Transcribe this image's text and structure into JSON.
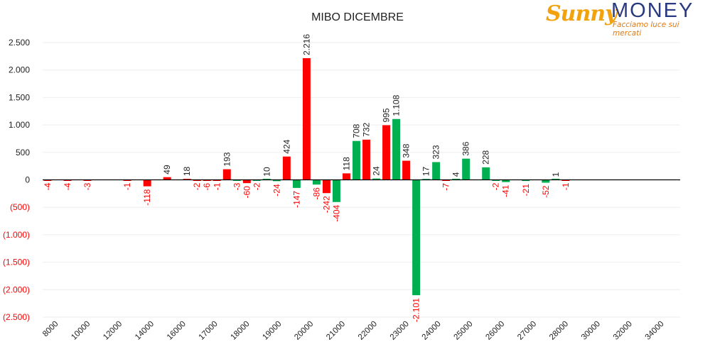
{
  "logo": {
    "brand_sunny": "Sunny",
    "brand_money": "MONEY",
    "tagline": "Facciamo luce sui mercati"
  },
  "colors": {
    "negative_value": "#ff0000",
    "positive_value": "#00b050",
    "text": "#222222",
    "grid": "#eeeeee",
    "zero_axis": "#000000",
    "neg_label": "#ff0000"
  },
  "chart_data": {
    "type": "bar",
    "title": "MIBO DICEMBRE",
    "xlabel": "",
    "ylabel": "",
    "ylim": [
      -2500,
      2500
    ],
    "y_ticks": [
      {
        "v": 2500,
        "label": "2.500"
      },
      {
        "v": 2000,
        "label": "2.000"
      },
      {
        "v": 1500,
        "label": "1.500"
      },
      {
        "v": 1000,
        "label": "1.000"
      },
      {
        "v": 500,
        "label": "500"
      },
      {
        "v": 0,
        "label": "0"
      },
      {
        "v": -500,
        "label": "(500)"
      },
      {
        "v": -1000,
        "label": "(1.000)"
      },
      {
        "v": -1500,
        "label": "(1.500)"
      },
      {
        "v": -2000,
        "label": "(2.000)"
      },
      {
        "v": -2500,
        "label": "(2.500)"
      }
    ],
    "x_tick_labels": [
      "8000",
      "10000",
      "12000",
      "14000",
      "16000",
      "17000",
      "18000",
      "19000",
      "20000",
      "21000",
      "22000",
      "23000",
      "24000",
      "25000",
      "26000",
      "27000",
      "28000",
      "30000",
      "32000",
      "34000"
    ],
    "strike_order": [
      "8000",
      "8500",
      "9000",
      "9500",
      "10000",
      "10500",
      "11000",
      "11500",
      "12000",
      "12500",
      "13000",
      "13500",
      "14000",
      "14500",
      "15000",
      "15500",
      "16000",
      "16250",
      "16500",
      "16750",
      "17000",
      "17250",
      "17500",
      "17750",
      "18000",
      "18250",
      "18500",
      "18750",
      "19000",
      "19250",
      "19500",
      "19750",
      "20000",
      "20250",
      "20500",
      "20750",
      "21000",
      "21250",
      "21500",
      "21750",
      "22000",
      "22250",
      "22500",
      "22750",
      "23000",
      "23250",
      "23500",
      "23750",
      "24000",
      "24500",
      "25000",
      "25500",
      "26000",
      "26500",
      "27000",
      "27500",
      "28000",
      "29000",
      "30000",
      "31000",
      "32000",
      "33000",
      "34000",
      "35000"
    ],
    "series": [
      {
        "color": "red",
        "values": [
          {
            "x": "8000",
            "y": -4,
            "label": "-4"
          },
          {
            "x": "9000",
            "y": -4,
            "label": "-4"
          },
          {
            "x": "10000",
            "y": -3,
            "label": "-3"
          },
          {
            "x": "12000",
            "y": -1,
            "label": "-1"
          },
          {
            "x": "13000",
            "y": -118,
            "label": "-118"
          },
          {
            "x": "14000",
            "y": 49,
            "label": "49"
          },
          {
            "x": "15000",
            "y": 18,
            "label": "18"
          },
          {
            "x": "15500",
            "y": -2,
            "label": "-2"
          },
          {
            "x": "16000",
            "y": -6,
            "label": "-6"
          },
          {
            "x": "16250",
            "y": -1,
            "label": "-1"
          },
          {
            "x": "16500",
            "y": 193,
            "label": "193"
          },
          {
            "x": "17000",
            "y": -60,
            "label": "-60"
          },
          {
            "x": "18000",
            "y": 424,
            "label": "424"
          },
          {
            "x": "18500",
            "y": 2216,
            "label": "2.216"
          },
          {
            "x": "19000",
            "y": -242,
            "label": "-242"
          },
          {
            "x": "19500",
            "y": 118,
            "label": "118"
          },
          {
            "x": "20000",
            "y": 732,
            "label": "732"
          },
          {
            "x": "20500",
            "y": 995,
            "label": "995"
          },
          {
            "x": "21000",
            "y": 348,
            "label": "348"
          },
          {
            "x": "22000",
            "y": -7,
            "label": "-7"
          },
          {
            "x": "26000",
            "y": -1,
            "label": "-1"
          }
        ]
      },
      {
        "color": "green",
        "values": [
          {
            "x": "16750",
            "y": -3,
            "label": "-3"
          },
          {
            "x": "17250",
            "y": -2,
            "label": "-2"
          },
          {
            "x": "17500",
            "y": 10,
            "label": "10"
          },
          {
            "x": "17750",
            "y": -24,
            "label": "-24"
          },
          {
            "x": "18250",
            "y": -147,
            "label": "-147"
          },
          {
            "x": "18750",
            "y": -86,
            "label": "-86"
          },
          {
            "x": "19250",
            "y": -404,
            "label": "-404"
          },
          {
            "x": "19750",
            "y": 708,
            "label": "708"
          },
          {
            "x": "20250",
            "y": 24,
            "label": "24"
          },
          {
            "x": "20750",
            "y": 1108,
            "label": "1.108"
          },
          {
            "x": "21250",
            "y": -2101,
            "label": "-2.101"
          },
          {
            "x": "21500",
            "y": 17,
            "label": "17"
          },
          {
            "x": "21750",
            "y": 323,
            "label": "323"
          },
          {
            "x": "22250",
            "y": 4,
            "label": "4"
          },
          {
            "x": "22500",
            "y": 386,
            "label": "386"
          },
          {
            "x": "23000",
            "y": 228,
            "label": "228"
          },
          {
            "x": "23250",
            "y": -2,
            "label": "-2"
          },
          {
            "x": "23500",
            "y": -41,
            "label": "-41"
          },
          {
            "x": "24000",
            "y": -21,
            "label": "-21"
          },
          {
            "x": "25000",
            "y": -52,
            "label": "-52"
          },
          {
            "x": "25500",
            "y": 1,
            "label": "1"
          }
        ]
      }
    ],
    "grid": true,
    "legend": "none"
  }
}
